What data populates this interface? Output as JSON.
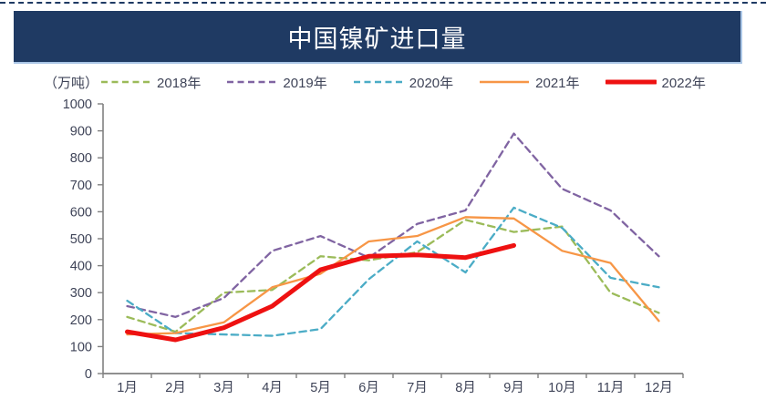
{
  "header": {
    "title": "中国镍矿进口量"
  },
  "legend": {
    "unit_label": "（万吨）"
  },
  "chart_data": {
    "type": "line",
    "title": "中国镍矿进口量",
    "unit": "万吨",
    "categories": [
      "1月",
      "2月",
      "3月",
      "4月",
      "5月",
      "6月",
      "7月",
      "8月",
      "9月",
      "10月",
      "11月",
      "12月"
    ],
    "series": [
      {
        "name": "2018年",
        "color": "#9bbb59",
        "line_style": "dashed",
        "values": [
          210,
          155,
          300,
          310,
          435,
          420,
          450,
          570,
          525,
          545,
          300,
          225
        ]
      },
      {
        "name": "2019年",
        "color": "#8064a2",
        "line_style": "dashed",
        "values": [
          250,
          210,
          280,
          455,
          510,
          430,
          555,
          605,
          890,
          685,
          605,
          435
        ]
      },
      {
        "name": "2020年",
        "color": "#4bacc6",
        "line_style": "dashed",
        "values": [
          270,
          150,
          145,
          140,
          165,
          350,
          490,
          375,
          615,
          540,
          355,
          320
        ]
      },
      {
        "name": "2021年",
        "color": "#f79646",
        "line_style": "solid",
        "values": [
          145,
          150,
          190,
          320,
          370,
          490,
          510,
          580,
          575,
          455,
          410,
          195
        ]
      },
      {
        "name": "2022年",
        "color": "#ee1111",
        "line_style": "solid-thick",
        "values": [
          155,
          125,
          170,
          250,
          385,
          435,
          440,
          430,
          475
        ]
      }
    ],
    "ylim": [
      0,
      1000
    ],
    "ytick_step": 100,
    "legend_position": "top",
    "grid": false,
    "styles": {
      "banner_bg": "#1f3a63",
      "banner_text": "#ffffff",
      "banner_edge": "#aac6e6",
      "axis_line": "#808080",
      "tick_text": "#3f4458"
    }
  }
}
